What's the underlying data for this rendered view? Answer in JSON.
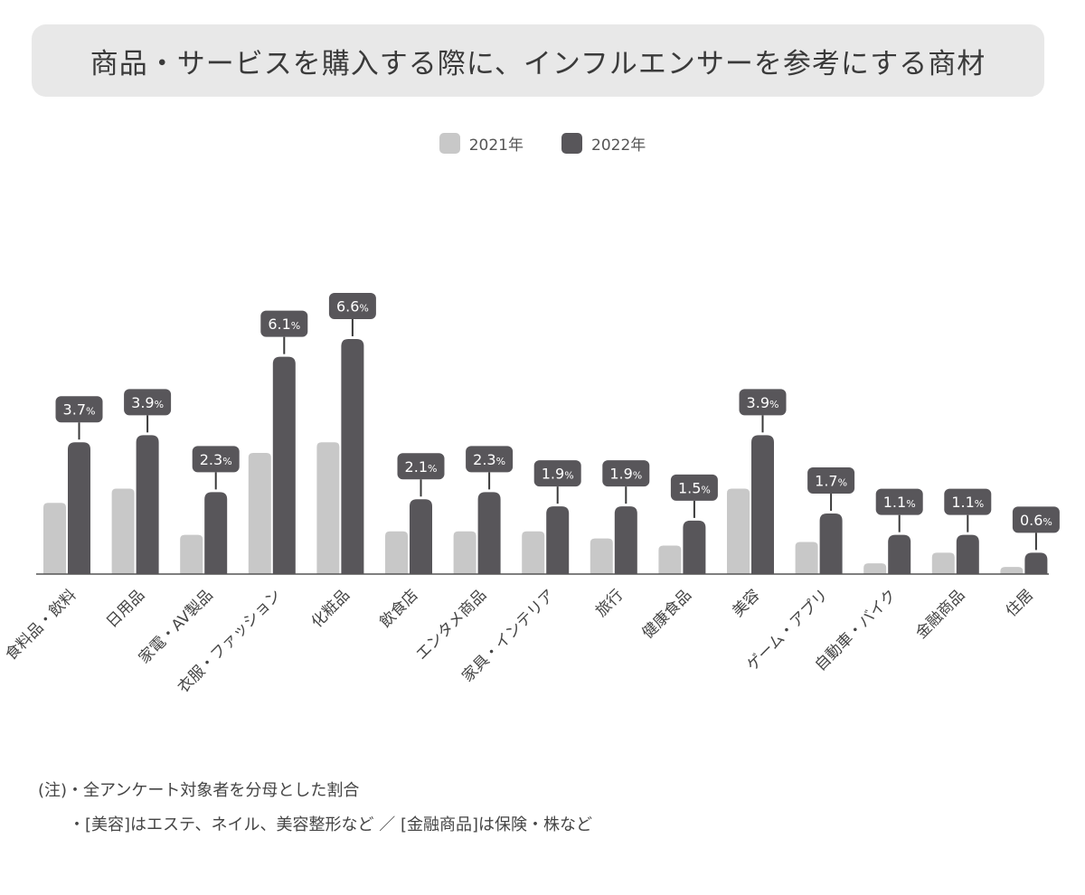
{
  "colors": {
    "series_2021": "#c8c8c8",
    "series_2022": "#58565a",
    "axis": "#555555",
    "label_text": "#ffffff"
  },
  "chart_data": {
    "type": "bar",
    "title": "商品・サービスを購入する際に、インフルエンサーを参考にする商材",
    "categories": [
      "食料品・飲料",
      "日用品",
      "家電・AV製品",
      "衣服・ファッション",
      "化粧品",
      "飲食店",
      "エンタメ商品",
      "家具・インテリア",
      "旅行",
      "健康食品",
      "美容",
      "ゲーム・アプリ",
      "自動車・バイク",
      "金融商品",
      "住居"
    ],
    "series": [
      {
        "name": "2021年",
        "values": [
          2.0,
          2.4,
          1.1,
          3.4,
          3.7,
          1.2,
          1.2,
          1.2,
          1.0,
          0.8,
          2.4,
          0.9,
          0.3,
          0.6,
          0.2
        ]
      },
      {
        "name": "2022年",
        "values": [
          3.7,
          3.9,
          2.3,
          6.1,
          6.6,
          2.1,
          2.3,
          1.9,
          1.9,
          1.5,
          3.9,
          1.7,
          1.1,
          1.1,
          0.6
        ]
      }
    ],
    "data_labels": [
      "3.7",
      "3.9",
      "2.3",
      "6.1",
      "6.6",
      "2.1",
      "2.3",
      "1.9",
      "1.9",
      "1.5",
      "3.9",
      "1.7",
      "1.1",
      "1.1",
      "0.6"
    ],
    "label_unit": "%",
    "ylim": [
      0,
      7
    ],
    "grid": false,
    "legend_position": "top-center"
  },
  "notes": {
    "line1": "(注)・全アンケート対象者を分母とした割合",
    "line2": "・[美容]はエステ、ネイル、美容整形など ／ [金融商品]は保険・株など"
  }
}
